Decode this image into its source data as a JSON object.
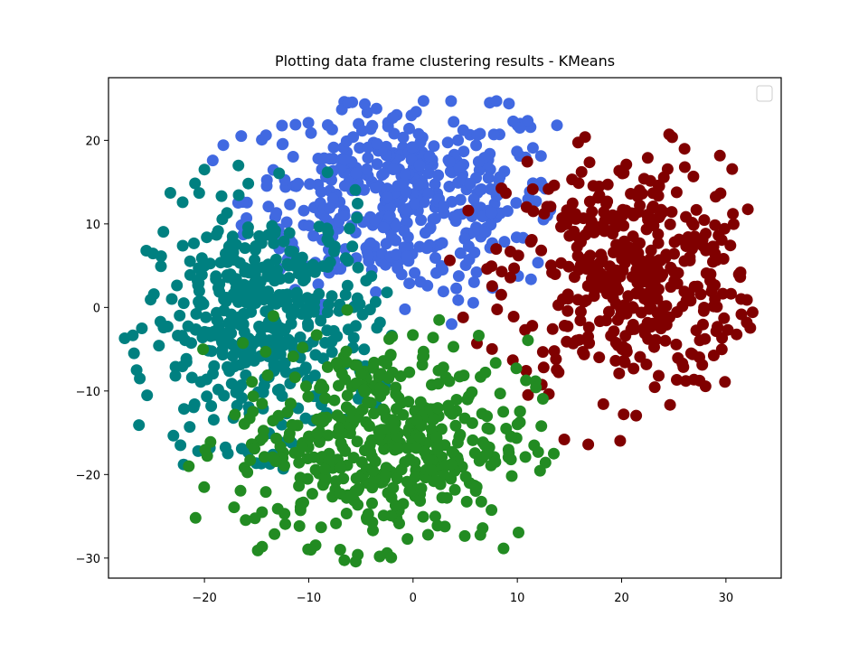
{
  "chart_data": {
    "type": "scatter",
    "title": "Plotting data frame clustering results - KMeans",
    "xlabel": "",
    "ylabel": "",
    "xlim": [
      -29.2,
      35.3
    ],
    "ylim": [
      -32.4,
      27.5
    ],
    "xticks": [
      -20,
      -10,
      0,
      10,
      20,
      30
    ],
    "yticks": [
      -30,
      -20,
      -10,
      0,
      10,
      20
    ],
    "xtick_labels": [
      "−20",
      "−10",
      "0",
      "10",
      "20",
      "30"
    ],
    "ytick_labels": [
      "−30",
      "−20",
      "−10",
      "0",
      "10",
      "20"
    ],
    "grid": false,
    "legend": {
      "placement": "top-right",
      "entries": []
    },
    "series": [
      {
        "color": "#4169e1",
        "cluster": {
          "center": [
            -1,
            13
          ],
          "spread": [
            7.5,
            6
          ],
          "count": 450,
          "bounds": {
            "xmin": -20,
            "xmax": 14,
            "ymin": -2,
            "ymax": 25
          }
        },
        "values": [
          [
            -6.2,
            24.5
          ],
          [
            -3.5,
            23.8
          ],
          [
            8.0,
            24.7
          ],
          [
            9.2,
            24.4
          ],
          [
            13.8,
            21.8
          ],
          [
            -19.2,
            17.6
          ],
          [
            3.7,
            -2.0
          ],
          [
            12.7,
            14.2
          ]
        ]
      },
      {
        "color": "#800000",
        "cluster": {
          "center": [
            21,
            4
          ],
          "spread": [
            6,
            7
          ],
          "count": 430,
          "bounds": {
            "xmin": 3,
            "xmax": 33,
            "ymin": -17,
            "ymax": 21
          }
        },
        "values": [
          [
            16.5,
            20.4
          ],
          [
            22.5,
            17.9
          ],
          [
            32.0,
            -1.8
          ],
          [
            27.0,
            8.5
          ],
          [
            16.8,
            -16.4
          ],
          [
            20.2,
            -12.8
          ],
          [
            4.8,
            -1.2
          ],
          [
            14.5,
            -15.8
          ]
        ]
      },
      {
        "color": "#008080",
        "cluster": {
          "center": [
            -14.5,
            -2
          ],
          "spread": [
            5.5,
            7
          ],
          "count": 430,
          "bounds": {
            "xmin": -28,
            "xmax": -2,
            "ymin": -20,
            "ymax": 18
          }
        },
        "values": [
          [
            -26.5,
            -7.5
          ],
          [
            -26.2,
            -8.5
          ],
          [
            -26.0,
            -2.5
          ],
          [
            -22.0,
            -18.8
          ],
          [
            -22.3,
            -16.5
          ],
          [
            -20.0,
            16.5
          ],
          [
            -4.5,
            3.2
          ],
          [
            -2.5,
            1.8
          ]
        ]
      },
      {
        "color": "#228b22",
        "cluster": {
          "center": [
            -3,
            -16
          ],
          "spread": [
            7,
            6
          ],
          "count": 470,
          "bounds": {
            "xmin": -21,
            "xmax": 14,
            "ymin": -31,
            "ymax": 0
          }
        },
        "values": [
          [
            -5.3,
            -29.6
          ],
          [
            -3.2,
            -29.8
          ],
          [
            -9.8,
            -29.0
          ],
          [
            13.5,
            -17.5
          ],
          [
            12.3,
            -14.2
          ],
          [
            -21.5,
            -19.0
          ],
          [
            2.5,
            -1.5
          ],
          [
            -2.0,
            -3.5
          ]
        ]
      }
    ]
  }
}
